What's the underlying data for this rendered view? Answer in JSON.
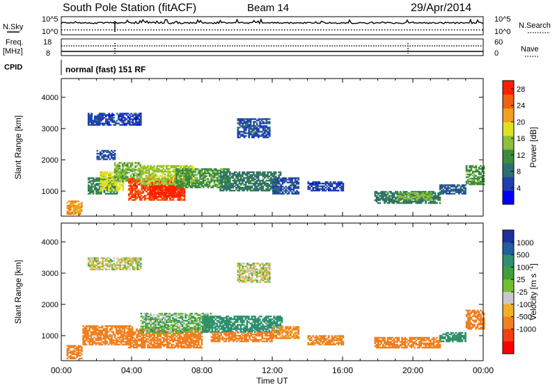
{
  "header": {
    "title": "South Pole Station (fitACF)",
    "beam": "Beam 14",
    "date": "29/Apr/2014"
  },
  "top_panels": {
    "nsky_label": "N.Sky",
    "nsky_ticks": [
      "10^5",
      "10^0"
    ],
    "nsearch_label": "N.Search",
    "nsearch_ticks": [
      "10^5",
      "10^0"
    ],
    "freq_label_line1": "Freq.",
    "freq_label_line2": "[MHz]",
    "freq_ticks": [
      "18",
      "8"
    ],
    "nave_label": "Nave",
    "nave_ticks": [
      "60",
      "0"
    ],
    "cpid_label": "CPID",
    "cpid_text": "normal (fast) 151 RF"
  },
  "colors": {
    "power_scale": [
      "#0000ff",
      "#1f3fb0",
      "#2f6f6f",
      "#3c8c3c",
      "#8fbf3f",
      "#e0e020",
      "#f0a020",
      "#f06010",
      "#ff2000"
    ],
    "velocity_scale": [
      "#1f2f9f",
      "#1f5f9f",
      "#2f8f6f",
      "#3f9f3f",
      "#70c030",
      "#c8c8c8",
      "#f0b020",
      "#f08020",
      "#f04010",
      "#ff0000"
    ]
  },
  "chart_data": [
    {
      "type": "heatmap",
      "name": "power-panel",
      "ylabel": "Slant Range [km]",
      "yticks": [
        "4000",
        "3000",
        "2000",
        "1000"
      ],
      "ylim": [
        200,
        4600
      ],
      "xlim": [
        0,
        24
      ],
      "colorbar": {
        "label": "Power [dB]",
        "ticks": [
          "28",
          "24",
          "20",
          "16",
          "12",
          "8",
          "4"
        ],
        "range": [
          0,
          30
        ]
      },
      "regions": [
        {
          "t": [
            0.3,
            1.2
          ],
          "r": [
            250,
            700
          ],
          "v": 22
        },
        {
          "t": [
            1.5,
            3.2
          ],
          "r": [
            900,
            1400
          ],
          "v": 10
        },
        {
          "t": [
            2.2,
            3.5
          ],
          "r": [
            1000,
            1600
          ],
          "v": 18
        },
        {
          "t": [
            3.0,
            4.5
          ],
          "r": [
            1300,
            1900
          ],
          "v": 14
        },
        {
          "t": [
            3.8,
            7.0
          ],
          "r": [
            700,
            1400
          ],
          "v": 26
        },
        {
          "t": [
            5.0,
            6.8
          ],
          "r": [
            800,
            1300
          ],
          "v": 29
        },
        {
          "t": [
            4.5,
            7.5
          ],
          "r": [
            1200,
            1800
          ],
          "v": 16
        },
        {
          "t": [
            6.5,
            9.5
          ],
          "r": [
            1100,
            1700
          ],
          "v": 12
        },
        {
          "t": [
            9.0,
            12.5
          ],
          "r": [
            1000,
            1600
          ],
          "v": 9
        },
        {
          "t": [
            12.0,
            13.5
          ],
          "r": [
            900,
            1400
          ],
          "v": 6
        },
        {
          "t": [
            1.5,
            4.5
          ],
          "r": [
            3100,
            3500
          ],
          "v": 5
        },
        {
          "t": [
            10.0,
            11.8
          ],
          "r": [
            2700,
            3300
          ],
          "v": 6
        },
        {
          "t": [
            2.0,
            3.0
          ],
          "r": [
            2000,
            2300
          ],
          "v": 6
        },
        {
          "t": [
            14.0,
            16.0
          ],
          "r": [
            1000,
            1300
          ],
          "v": 5
        },
        {
          "t": [
            17.8,
            21.5
          ],
          "r": [
            600,
            1000
          ],
          "v": 9
        },
        {
          "t": [
            19.0,
            21.0
          ],
          "r": [
            700,
            950
          ],
          "v": 14
        },
        {
          "t": [
            21.5,
            23.0
          ],
          "r": [
            900,
            1200
          ],
          "v": 7
        },
        {
          "t": [
            23.0,
            24.0
          ],
          "r": [
            1200,
            1800
          ],
          "v": 12
        }
      ]
    },
    {
      "type": "heatmap",
      "name": "velocity-panel",
      "ylabel": "Slant Range [km]",
      "yticks": [
        "4000",
        "3000",
        "2000",
        "1000"
      ],
      "ylim": [
        200,
        4600
      ],
      "xlim": [
        0,
        24
      ],
      "xticks": [
        "00:00",
        "04:00",
        "08:00",
        "12:00",
        "16:00",
        "20:00",
        "00:00"
      ],
      "xlabel": "Time UT",
      "colorbar": {
        "label": "Velocity [m s-1]",
        "ticks": [
          "1000",
          "500",
          "100",
          "25",
          "-25",
          "-100",
          "-500",
          "-1000"
        ]
      },
      "regions": [
        {
          "t": [
            0.3,
            1.2
          ],
          "r": [
            250,
            700
          ],
          "v": -300
        },
        {
          "t": [
            1.2,
            4.0
          ],
          "r": [
            700,
            1300
          ],
          "v": -400
        },
        {
          "t": [
            3.8,
            8.0
          ],
          "r": [
            600,
            1200
          ],
          "v": -350
        },
        {
          "t": [
            4.5,
            8.5
          ],
          "r": [
            1100,
            1700
          ],
          "v": 60
        },
        {
          "t": [
            8.0,
            12.5
          ],
          "r": [
            1100,
            1600
          ],
          "v": 200
        },
        {
          "t": [
            8.5,
            12.0
          ],
          "r": [
            800,
            1100
          ],
          "v": -200
        },
        {
          "t": [
            12.0,
            13.5
          ],
          "r": [
            900,
            1300
          ],
          "v": -120
        },
        {
          "t": [
            1.5,
            4.5
          ],
          "r": [
            3100,
            3500
          ],
          "v": 0
        },
        {
          "t": [
            10.0,
            11.8
          ],
          "r": [
            2700,
            3300
          ],
          "v": 5
        },
        {
          "t": [
            14.0,
            16.0
          ],
          "r": [
            700,
            1000
          ],
          "v": -150
        },
        {
          "t": [
            17.8,
            21.5
          ],
          "r": [
            600,
            950
          ],
          "v": -200
        },
        {
          "t": [
            21.5,
            23.0
          ],
          "r": [
            800,
            1100
          ],
          "v": 150
        },
        {
          "t": [
            23.0,
            24.0
          ],
          "r": [
            1200,
            1800
          ],
          "v": -300
        }
      ]
    }
  ]
}
